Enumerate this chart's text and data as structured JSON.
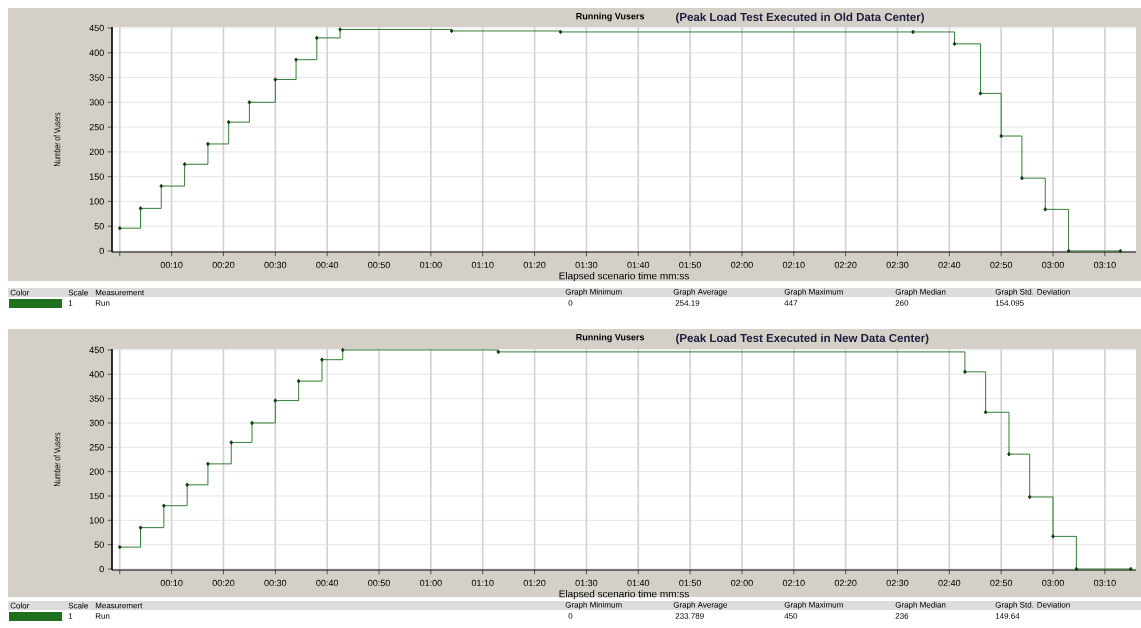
{
  "chart_data": [
    {
      "type": "step",
      "title": "Running Vusers",
      "subtitle": "(Peak Load Test Executed in Old Data Center)",
      "xlabel": "Elapsed scenario time mm:ss",
      "ylabel": "Number of Vusers",
      "series": [
        {
          "name": "Run",
          "color": "#1f6f1f",
          "x": [
            0,
            4,
            8,
            12.5,
            17,
            21,
            25,
            30,
            34,
            38,
            42.5,
            64,
            85,
            153,
            161,
            166,
            170,
            174,
            178.5,
            183,
            193
          ],
          "values": [
            46,
            86,
            131,
            175,
            216,
            260,
            300,
            346,
            386,
            430,
            447,
            444,
            442,
            442,
            418,
            318,
            232,
            147,
            84,
            0,
            0
          ]
        }
      ],
      "xlim": [
        -1.5,
        196
      ],
      "ylim": [
        -2,
        452
      ],
      "xticks": [
        {
          "value": 0,
          "label": null
        },
        {
          "value": 10,
          "label": "00:10"
        },
        {
          "value": 20,
          "label": "00:20"
        },
        {
          "value": 30,
          "label": "00:30"
        },
        {
          "value": 40,
          "label": "00:40"
        },
        {
          "value": 50,
          "label": "00:50"
        },
        {
          "value": 60,
          "label": "01:00"
        },
        {
          "value": 70,
          "label": "01:10"
        },
        {
          "value": 80,
          "label": "01:20"
        },
        {
          "value": 90,
          "label": "01:30"
        },
        {
          "value": 100,
          "label": "01:40"
        },
        {
          "value": 110,
          "label": "01:50"
        },
        {
          "value": 120,
          "label": "02:00"
        },
        {
          "value": 130,
          "label": "02:10"
        },
        {
          "value": 140,
          "label": "02:20"
        },
        {
          "value": 150,
          "label": "02:30"
        },
        {
          "value": 160,
          "label": "02:40"
        },
        {
          "value": 170,
          "label": "02:50"
        },
        {
          "value": 180,
          "label": "03:00"
        },
        {
          "value": 190,
          "label": "03:10"
        }
      ],
      "yticks": [
        0,
        50,
        100,
        150,
        200,
        250,
        300,
        350,
        400,
        450
      ],
      "grid": true,
      "legend": "bottom",
      "marker": "diamond",
      "annotations": [
        "Color",
        "Scale",
        "Measurement",
        "Graph Minimum",
        "Graph Average",
        "Graph Maximum",
        "Graph Median",
        "Graph Std. Deviation",
        "1",
        "0",
        "254.19",
        "447",
        "260",
        "154.095"
      ]
    },
    {
      "type": "step",
      "title": "Running Vusers",
      "subtitle": "(Peak Load Test Executed in New Data Center)",
      "xlabel": "Elapsed scenario time mm:ss",
      "ylabel": "Number of Vusers",
      "series": [
        {
          "name": "Run",
          "color": "#1f6f1f",
          "x": [
            0,
            4,
            8.5,
            13,
            17,
            21.5,
            25.5,
            30,
            34.5,
            39,
            43,
            73,
            163,
            167,
            171.5,
            175.5,
            180,
            184.5,
            195
          ],
          "values": [
            45,
            85,
            130,
            173,
            216,
            260,
            300,
            346,
            386,
            430,
            450,
            446,
            405,
            322,
            236,
            148,
            67,
            0,
            0
          ]
        }
      ],
      "xlim": [
        -1.5,
        196
      ],
      "ylim": [
        -2,
        452
      ],
      "xticks": [
        {
          "value": 0,
          "label": null
        },
        {
          "value": 10,
          "label": "00:10"
        },
        {
          "value": 20,
          "label": "00:20"
        },
        {
          "value": 30,
          "label": "00:30"
        },
        {
          "value": 40,
          "label": "00:40"
        },
        {
          "value": 50,
          "label": "00:50"
        },
        {
          "value": 60,
          "label": "01:00"
        },
        {
          "value": 70,
          "label": "01:10"
        },
        {
          "value": 80,
          "label": "01:20"
        },
        {
          "value": 90,
          "label": "01:30"
        },
        {
          "value": 100,
          "label": "01:40"
        },
        {
          "value": 110,
          "label": "01:50"
        },
        {
          "value": 120,
          "label": "02:00"
        },
        {
          "value": 130,
          "label": "02:10"
        },
        {
          "value": 140,
          "label": "02:20"
        },
        {
          "value": 150,
          "label": "02:30"
        },
        {
          "value": 160,
          "label": "02:40"
        },
        {
          "value": 170,
          "label": "02:50"
        },
        {
          "value": 180,
          "label": "03:00"
        },
        {
          "value": 190,
          "label": "03:10"
        }
      ],
      "yticks": [
        0,
        50,
        100,
        150,
        200,
        250,
        300,
        350,
        400,
        450
      ],
      "grid": true,
      "legend": "bottom",
      "marker": "diamond",
      "annotations": [
        "Color",
        "Scale",
        "Measuremert",
        "Graph Minimum",
        "Graph Average",
        "Graph Maximum",
        "Graph Median",
        "Graph Std. Deviation",
        "1",
        "0",
        "233.789",
        "450",
        "236",
        "149.64"
      ]
    }
  ]
}
